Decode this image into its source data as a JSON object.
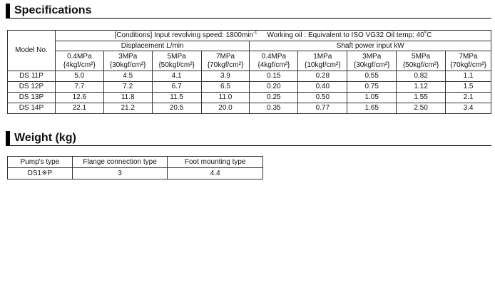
{
  "specifications": {
    "heading": "Specifications",
    "conditions_text": "[Conditions] Input revolving speed: 1800min",
    "conditions_sup": "-1",
    "conditions_rest": "Working oil : Equivalent to ISO VG32   Oil temp: 40˚C",
    "model_header": "Model No.",
    "displacement_header": "Displacement  L/min",
    "power_header": "Shaft power input  kW",
    "displacement_pressures": [
      {
        "mpa": "0.4MPa",
        "kgf": "{4kgf/cm²}"
      },
      {
        "mpa": "3MPa",
        "kgf": "{30kgf/cm²}"
      },
      {
        "mpa": "5MPa",
        "kgf": "{50kgf/cm²}"
      },
      {
        "mpa": "7MPa",
        "kgf": "{70kgf/cm²}"
      }
    ],
    "power_pressures": [
      {
        "mpa": "0.4MPa",
        "kgf": "{4kgf/cm²}"
      },
      {
        "mpa": "1MPa",
        "kgf": "{10kgf/cm²}"
      },
      {
        "mpa": "3MPa",
        "kgf": "{30kgf/cm²}"
      },
      {
        "mpa": "5MPa",
        "kgf": "{50kgf/cm²}"
      },
      {
        "mpa": "7MPa",
        "kgf": "{70kgf/cm²}"
      }
    ],
    "rows": [
      {
        "model": "DS 11P",
        "displacement": [
          "5.0",
          "4.5",
          "4.1",
          "3.9"
        ],
        "power": [
          "0.15",
          "0.28",
          "0.55",
          "0.82",
          "1.1"
        ]
      },
      {
        "model": "DS 12P",
        "displacement": [
          "7.7",
          "7.2",
          "6.7",
          "6.5"
        ],
        "power": [
          "0.20",
          "0.40",
          "0.75",
          "1.12",
          "1.5"
        ]
      },
      {
        "model": "DS 13P",
        "displacement": [
          "12.6",
          "11.8",
          "11.5",
          "11.0"
        ],
        "power": [
          "0.25",
          "0.50",
          "1.05",
          "1.55",
          "2.1"
        ]
      },
      {
        "model": "DS 14P",
        "displacement": [
          "22.1",
          "21.2",
          "20.5",
          "20.0"
        ],
        "power": [
          "0.35",
          "0.77",
          "1.65",
          "2.50",
          "3.4"
        ]
      }
    ]
  },
  "weight": {
    "heading": "Weight (kg)",
    "headers": [
      "Pump's type",
      "Flange connection type",
      "Foot mounting type"
    ],
    "row": [
      "DS1※P",
      "3",
      "4.4"
    ]
  }
}
